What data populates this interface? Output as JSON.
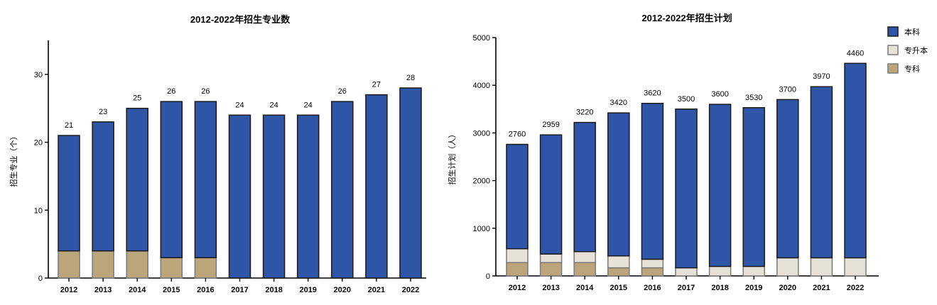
{
  "chart_data": [
    {
      "type": "bar",
      "stacked": true,
      "title": "2012-2022年招生专业数",
      "xlabel": "",
      "ylabel": "招生专业（个）",
      "ylim": [
        0,
        35
      ],
      "yticks": [
        0,
        10,
        20,
        30
      ],
      "grid": false,
      "categories": [
        "2012",
        "2013",
        "2014",
        "2015",
        "2016",
        "2017",
        "2018",
        "2019",
        "2020",
        "2021",
        "2022"
      ],
      "series": [
        {
          "name": "专科",
          "values": [
            4,
            4,
            4,
            3,
            3,
            0,
            0,
            0,
            0,
            0,
            0
          ]
        },
        {
          "name": "本科",
          "values": [
            17,
            19,
            21,
            23,
            23,
            24,
            24,
            24,
            26,
            27,
            28
          ]
        }
      ],
      "totals": [
        21,
        23,
        25,
        26,
        26,
        24,
        24,
        24,
        26,
        27,
        28
      ]
    },
    {
      "type": "bar",
      "stacked": true,
      "title": "2012-2022年招生计划",
      "xlabel": "",
      "ylabel": "招生计划（人）",
      "ylim": [
        0,
        5000
      ],
      "yticks": [
        0,
        1000,
        2000,
        3000,
        4000,
        5000
      ],
      "grid": false,
      "legend_position": "top-right",
      "categories": [
        "2012",
        "2013",
        "2014",
        "2015",
        "2016",
        "2017",
        "2018",
        "2019",
        "2020",
        "2021",
        "2022"
      ],
      "series": [
        {
          "name": "专科",
          "values": [
            280,
            280,
            280,
            170,
            170,
            0,
            0,
            0,
            0,
            0,
            0
          ]
        },
        {
          "name": "专升本",
          "values": [
            290,
            180,
            230,
            250,
            180,
            170,
            200,
            200,
            380,
            380,
            380
          ]
        },
        {
          "name": "本科",
          "values": [
            2190,
            2499,
            2710,
            3000,
            3270,
            3330,
            3400,
            3330,
            3320,
            3590,
            4080
          ]
        }
      ],
      "totals": [
        2760,
        2959,
        3220,
        3420,
        3620,
        3500,
        3600,
        3530,
        3700,
        3970,
        4460
      ]
    }
  ],
  "legend": [
    {
      "name": "本科",
      "color": "#2f56a6"
    },
    {
      "name": "专升本",
      "color": "#e6e2d8"
    },
    {
      "name": "专科",
      "color": "#bca57b"
    }
  ],
  "colors": {
    "本科": "#2f56a6",
    "专升本": "#e6e2d8",
    "专科": "#bca57b",
    "border": "#7a7a7a"
  }
}
